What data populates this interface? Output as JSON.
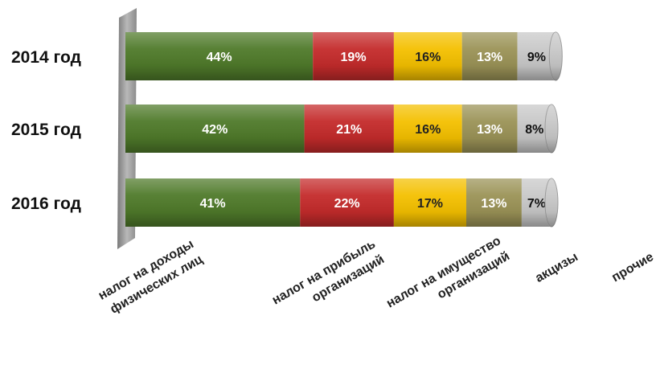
{
  "chart_data": {
    "type": "bar",
    "orientation": "horizontal",
    "stacked": true,
    "categories": [
      "2014 год",
      "2015 год",
      "2016 год"
    ],
    "series": [
      {
        "name": "налог на доходы физических лиц",
        "values": [
          44,
          42,
          41
        ],
        "color": "#4f7a2a",
        "label_color": "#ffffff"
      },
      {
        "name": "налог на прибыль организаций",
        "values": [
          19,
          21,
          22
        ],
        "color": "#c42b2b",
        "label_color": "#ffffff"
      },
      {
        "name": "налог на имущество организаций",
        "values": [
          16,
          16,
          17
        ],
        "color": "#f4c000",
        "label_color": "#222222"
      },
      {
        "name": "акцизы",
        "values": [
          13,
          13,
          13
        ],
        "color": "#9b9357",
        "label_color": "#ffffff"
      },
      {
        "name": "прочие",
        "values": [
          9,
          8,
          7
        ],
        "color": "#c8c8c8",
        "label_color": "#111111"
      }
    ],
    "data_labels": [
      [
        "44%",
        "19%",
        "16%",
        "13%",
        "9%"
      ],
      [
        "42%",
        "21%",
        "16%",
        "13%",
        "8%"
      ],
      [
        "41%",
        "22%",
        "17%",
        "13%",
        "7%"
      ]
    ],
    "legend_labels": [
      [
        "налог на доходы",
        "физических лиц"
      ],
      [
        "налог на прибыль",
        "организаций"
      ],
      [
        "налог на имущество",
        "организаций"
      ],
      [
        "акцизы"
      ],
      [
        "прочие"
      ]
    ],
    "unit": "%",
    "legend_position": "bottom",
    "grid": false
  }
}
